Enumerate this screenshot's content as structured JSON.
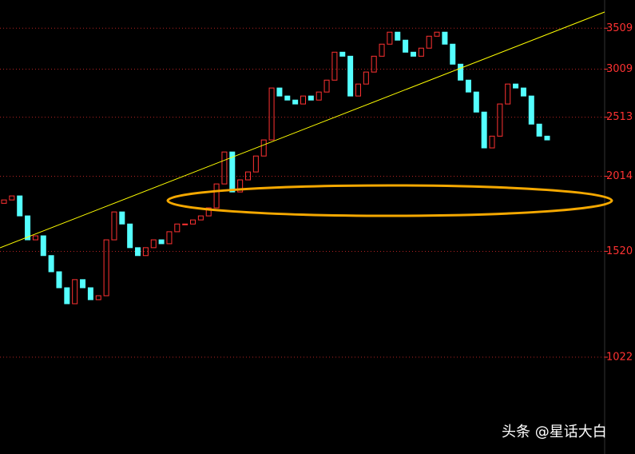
{
  "chart_data": {
    "type": "candlestick",
    "log_scale": true,
    "grid": true,
    "up_color": "#ff3232",
    "down_color": "#54ffff",
    "axis_color": "#ff3232",
    "ylim": [
      711,
      3900
    ],
    "yticks": [
      1022,
      1520,
      2014,
      2513,
      3009,
      3509
    ],
    "open": [
      1820,
      1843,
      1871,
      1736,
      1587,
      1611,
      1496,
      1408,
      1326,
      1249,
      1367,
      1326,
      1268,
      1287,
      1587,
      1762,
      1684,
      1541,
      1496,
      1541,
      1587,
      1564,
      1636,
      1684,
      1684,
      1710,
      1736,
      1789,
      1957,
      2206,
      1899,
      1987,
      2047,
      2173,
      2308,
      2804,
      2721,
      2680,
      2641,
      2721,
      2680,
      2762,
      2888,
      3207,
      3159,
      2721,
      2846,
      2977,
      3159,
      3305,
      3457,
      3355,
      3207,
      3159,
      3256,
      3405,
      3457,
      3305,
      3066,
      2888,
      2762,
      2562,
      2240,
      2341,
      2641,
      2846,
      2804,
      2721,
      2449,
      2341
    ],
    "close": [
      1843,
      1871,
      1736,
      1587,
      1611,
      1496,
      1408,
      1326,
      1249,
      1367,
      1326,
      1268,
      1287,
      1587,
      1762,
      1684,
      1541,
      1496,
      1541,
      1587,
      1564,
      1636,
      1684,
      1684,
      1710,
      1736,
      1789,
      1957,
      2206,
      1899,
      1987,
      2047,
      2173,
      2308,
      2804,
      2721,
      2680,
      2641,
      2721,
      2680,
      2762,
      2888,
      3207,
      3159,
      2721,
      2846,
      2977,
      3159,
      3305,
      3457,
      3355,
      3207,
      3159,
      3256,
      3405,
      3457,
      3305,
      3066,
      2888,
      2762,
      2562,
      2240,
      2341,
      2641,
      2846,
      2804,
      2721,
      2449,
      2341,
      2308
    ],
    "watermark": "头条 @星话大白"
  }
}
